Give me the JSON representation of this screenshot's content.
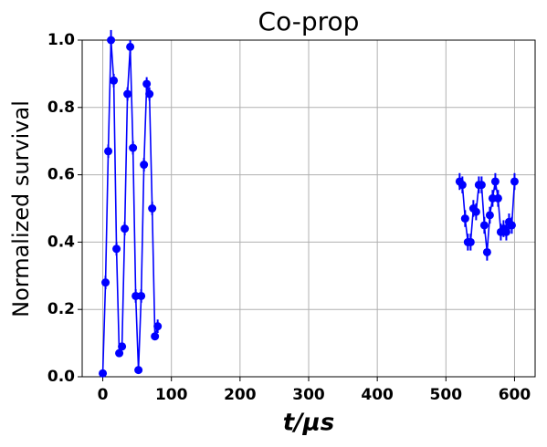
{
  "chart_data": {
    "type": "line",
    "title": "Co-prop",
    "xlabel": "t/μs",
    "ylabel": "Normalized survival",
    "color": "#0000ff",
    "grid": true,
    "xlim": [
      -30,
      630
    ],
    "ylim": [
      0,
      1
    ],
    "xticks": [
      0,
      100,
      200,
      300,
      400,
      500,
      600
    ],
    "yticks": [
      {
        "value": 0,
        "label": "0.0"
      },
      0.2,
      0.4,
      0.6,
      0.8,
      {
        "value": 1,
        "label": "1.0"
      }
    ],
    "x": [
      0,
      4,
      8,
      12,
      16,
      20,
      24,
      28,
      32,
      36,
      40,
      44,
      48,
      52,
      56,
      60,
      64,
      68,
      72,
      76,
      80,
      null,
      520,
      524,
      528,
      532,
      536,
      540,
      544,
      548,
      552,
      556,
      560,
      564,
      568,
      572,
      576,
      580,
      584,
      588,
      592,
      596,
      600
    ],
    "values": [
      0.01,
      0.28,
      0.67,
      1.0,
      0.88,
      0.38,
      0.07,
      0.09,
      0.44,
      0.84,
      0.98,
      0.68,
      0.24,
      0.02,
      0.24,
      0.63,
      0.87,
      0.84,
      0.5,
      0.12,
      0.15,
      null,
      0.58,
      0.57,
      0.47,
      0.4,
      0.4,
      0.5,
      0.49,
      0.57,
      0.57,
      0.45,
      0.37,
      0.48,
      0.53,
      0.58,
      0.53,
      0.43,
      0.44,
      0.43,
      0.46,
      0.45,
      0.58
    ],
    "errors": [
      0.01,
      0.02,
      0.02,
      0.03,
      0.02,
      0.02,
      0.01,
      0.01,
      0.02,
      0.02,
      0.02,
      0.02,
      0.02,
      0.01,
      0.02,
      0.02,
      0.02,
      0.02,
      0.02,
      0.01,
      0.02,
      null,
      0.025,
      0.025,
      0.025,
      0.025,
      0.025,
      0.025,
      0.025,
      0.025,
      0.025,
      0.025,
      0.025,
      0.025,
      0.025,
      0.025,
      0.025,
      0.025,
      0.025,
      0.025,
      0.025,
      0.025,
      0.025
    ]
  }
}
